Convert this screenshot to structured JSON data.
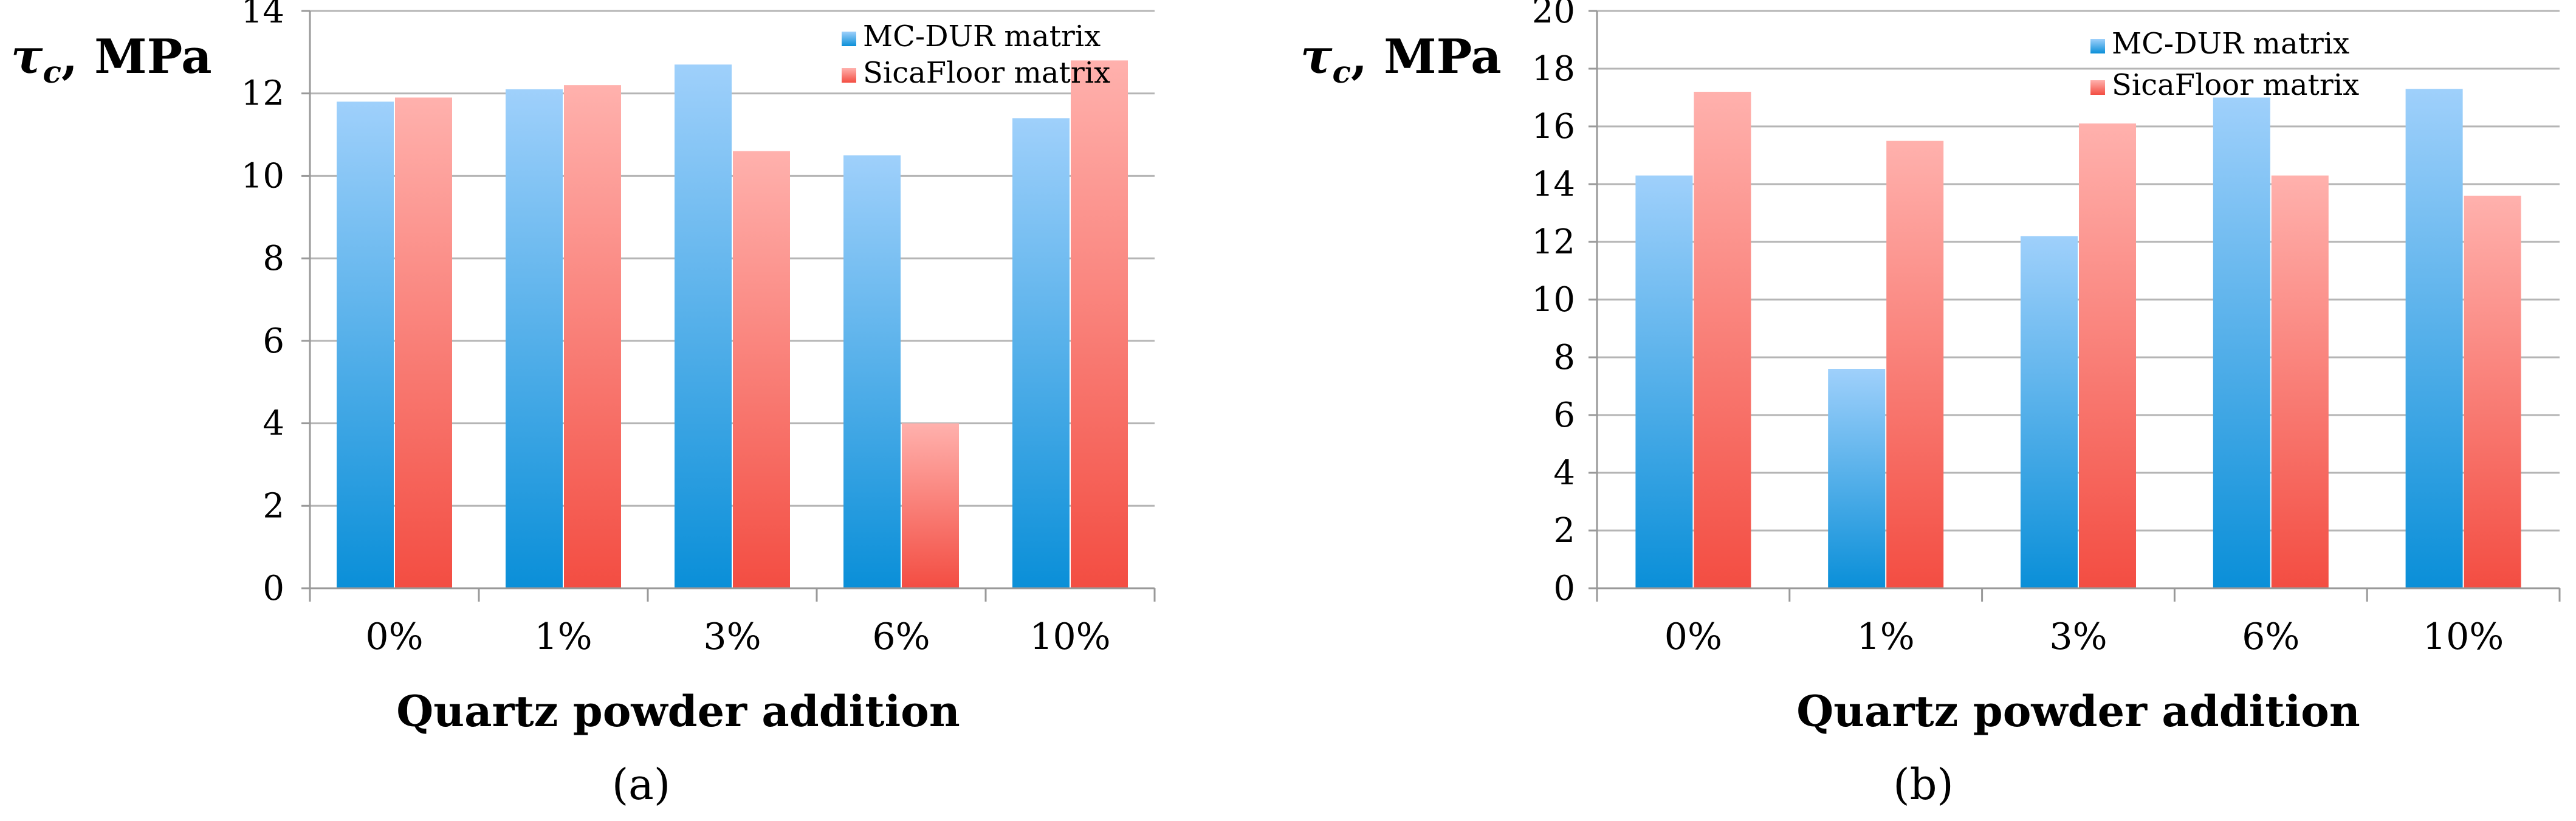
{
  "colors": {
    "mc_top": "#9fd0fb",
    "mc_bottom": "#0a8fd8",
    "sica_top": "#ffb1ad",
    "sica_bottom": "#f34d42",
    "grid": "#b5b5b5",
    "axis": "#999999"
  },
  "chart_data": [
    {
      "type": "bar",
      "panel": "(a)",
      "ylabel_symbol": "τ",
      "ylabel_sub": "c",
      "ylabel_rest": ", MPa",
      "xlabel": "Quartz powder addition",
      "categories": [
        "0%",
        "1%",
        "3%",
        "6%",
        "10%"
      ],
      "ylim": [
        0,
        14
      ],
      "yticks": [
        0,
        2,
        4,
        6,
        8,
        10,
        12,
        14
      ],
      "grid": true,
      "legend_position": "top-right",
      "series": [
        {
          "name": "MC-DUR matrix",
          "values": [
            11.8,
            12.1,
            12.7,
            10.5,
            11.4
          ]
        },
        {
          "name": "SicaFloor matrix",
          "values": [
            11.9,
            12.2,
            10.6,
            4.0,
            12.8
          ]
        }
      ]
    },
    {
      "type": "bar",
      "panel": "(b)",
      "ylabel_symbol": "τ",
      "ylabel_sub": "c",
      "ylabel_rest": ", MPa",
      "xlabel": "Quartz powder addition",
      "categories": [
        "0%",
        "1%",
        "3%",
        "6%",
        "10%"
      ],
      "ylim": [
        0,
        20
      ],
      "yticks": [
        0,
        2,
        4,
        6,
        8,
        10,
        12,
        14,
        16,
        18,
        20
      ],
      "grid": true,
      "legend_position": "top-right",
      "series": [
        {
          "name": "MC-DUR matrix",
          "values": [
            14.3,
            7.6,
            12.2,
            17.0,
            17.3
          ]
        },
        {
          "name": "SicaFloor matrix",
          "values": [
            17.2,
            15.5,
            16.1,
            14.3,
            13.6
          ]
        }
      ]
    }
  ]
}
